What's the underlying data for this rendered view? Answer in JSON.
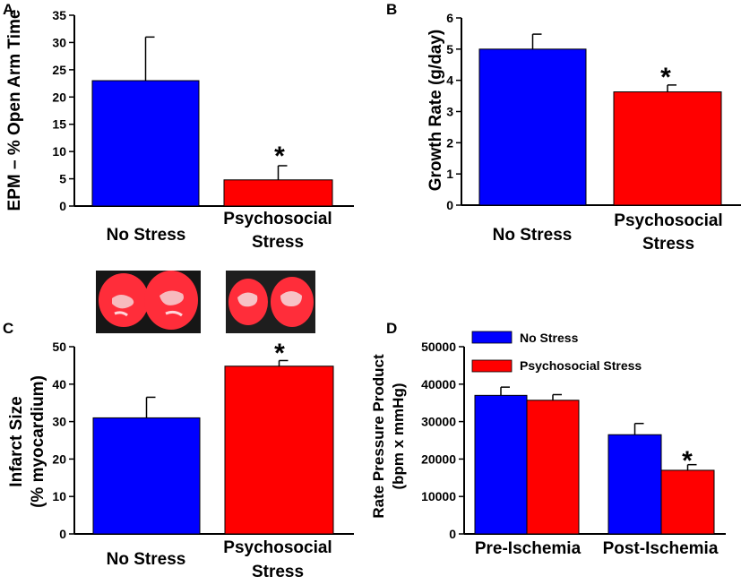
{
  "colors": {
    "no_stress": "#0000ff",
    "psychosocial": "#ff0000",
    "axis": "#000000"
  },
  "chart_data": [
    {
      "panel": "A",
      "type": "bar",
      "ylabel": "EPM – % Open Arm Time",
      "ylim": [
        0,
        35
      ],
      "yticks": [
        0,
        5,
        10,
        15,
        20,
        25,
        30,
        35
      ],
      "categories": [
        [
          "No Stress"
        ],
        [
          "Psychosocial",
          "Stress"
        ]
      ],
      "values": [
        23,
        4.8
      ],
      "errors": [
        8,
        2.6
      ],
      "significant": [
        false,
        true
      ],
      "star": "*"
    },
    {
      "panel": "B",
      "type": "bar",
      "ylabel": "Growth Rate (g/day)",
      "ylim": [
        0,
        6
      ],
      "yticks": [
        0,
        1,
        2,
        3,
        4,
        5,
        6
      ],
      "categories": [
        [
          "No Stress"
        ],
        [
          "Psychosocial",
          "Stress"
        ]
      ],
      "values": [
        5.0,
        3.63
      ],
      "errors": [
        0.48,
        0.22
      ],
      "significant": [
        false,
        true
      ],
      "star": "*"
    },
    {
      "panel": "C",
      "type": "bar",
      "ylabel": [
        "Infarct Size",
        "(% myocardium)"
      ],
      "ylim": [
        0,
        50
      ],
      "yticks": [
        0,
        10,
        20,
        30,
        40,
        50
      ],
      "categories": [
        [
          "No Stress"
        ],
        [
          "Psychosocial",
          "Stress"
        ]
      ],
      "values": [
        31,
        44.8
      ],
      "errors": [
        5.5,
        1.5
      ],
      "significant": [
        false,
        true
      ],
      "star": "*"
    },
    {
      "panel": "D",
      "type": "bar",
      "ylabel": [
        "Rate Pressure Product",
        "(bpm x mmHg)"
      ],
      "ylim": [
        0,
        50000
      ],
      "yticks": [
        0,
        10000,
        20000,
        30000,
        40000,
        50000
      ],
      "categories": [
        "Pre-Ischemia",
        "Post-Ischemia"
      ],
      "series": [
        {
          "name": "No Stress",
          "values": [
            37000,
            26500
          ],
          "errors": [
            2200,
            3000
          ],
          "significant": [
            false,
            false
          ]
        },
        {
          "name": "Psychosocial Stress",
          "values": [
            35700,
            17000
          ],
          "errors": [
            1500,
            1500
          ],
          "significant": [
            false,
            true
          ]
        }
      ],
      "legend": "top-left",
      "star": "*"
    }
  ]
}
